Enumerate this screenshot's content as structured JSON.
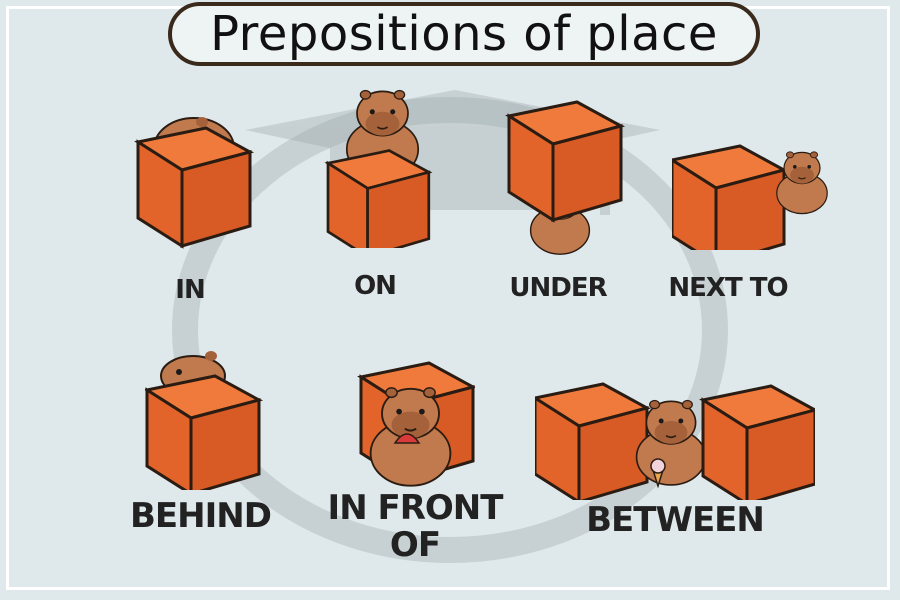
{
  "title": "Prepositions of place",
  "colors": {
    "background": "#dfe8ea",
    "box_front": "#e2642a",
    "box_top": "#ef7a3c",
    "box_side": "#c9531f",
    "capybara": "#c07a4e",
    "capybara_dark": "#a5613a",
    "outline": "#2a1c12"
  },
  "labels": {
    "in": "IN",
    "on": "ON",
    "under": "UNDER",
    "next_to": "NEXT TO",
    "behind": "BEHIND",
    "in_front_of_line1": "IN FRONT",
    "in_front_of_line2": "OF",
    "between": "BETWEEN"
  }
}
